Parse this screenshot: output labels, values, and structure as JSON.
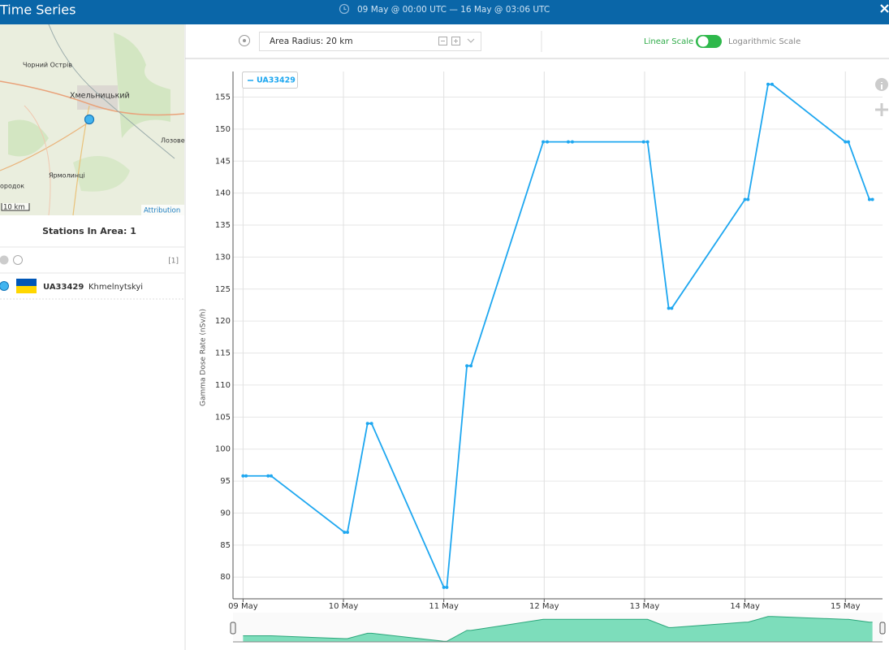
{
  "header": {
    "title": "Time Series",
    "date_range": "09 May @ 00:00 UTC — 16 May @ 03:06 UTC"
  },
  "map": {
    "labels": [
      "Чорний Острів",
      "Хмельницький",
      "Лозове",
      "Ярмолинці",
      "ородок"
    ],
    "scale": "10 km",
    "attribution": "Attribution"
  },
  "stations": {
    "title": "Stations In Area: 1",
    "count": "[1]",
    "items": [
      {
        "id": "UA33429",
        "name": "Khmelnytskyi"
      }
    ]
  },
  "toolbar": {
    "radius": "Area Radius: 20 km",
    "linear": "Linear Scale",
    "log": "Logarithmic Scale"
  },
  "chart_data": {
    "type": "line",
    "y_label": "Gamma Dose Rate (nSv/h)",
    "x": [
      0,
      0.03,
      0.25,
      0.28,
      1.01,
      1.04,
      1.24,
      1.28,
      2.0,
      2.03,
      2.23,
      2.27,
      2.99,
      3.03,
      3.24,
      3.28,
      3.99,
      4.03,
      4.24,
      4.27,
      5.0,
      5.03,
      5.23,
      5.27,
      6.0,
      6.03,
      6.24,
      6.27
    ],
    "series": [
      {
        "name": "UA33429",
        "color": "#1ea7f0",
        "values": [
          95.8,
          95.8,
          95.8,
          95.8,
          87,
          87,
          104,
          104,
          78.4,
          78.4,
          113,
          113,
          148,
          148,
          148,
          148,
          148,
          148,
          122,
          122,
          139,
          139,
          157,
          157,
          148,
          148,
          139,
          139
        ]
      }
    ],
    "xlim": [
      -0.1,
      6.37
    ],
    "xticks": [
      {
        "value": 0,
        "label": "09 May"
      },
      {
        "value": 1,
        "label": "10 May"
      },
      {
        "value": 2,
        "label": "11 May"
      },
      {
        "value": 3,
        "label": "12 May"
      },
      {
        "value": 4,
        "label": "13 May"
      },
      {
        "value": 5,
        "label": "14 May"
      },
      {
        "value": 6,
        "label": "15 May"
      }
    ],
    "ylim": [
      76.6,
      159
    ],
    "yticks": [
      80,
      85,
      90,
      95,
      100,
      105,
      110,
      115,
      120,
      125,
      130,
      135,
      140,
      145,
      150,
      155
    ],
    "grid": true
  }
}
